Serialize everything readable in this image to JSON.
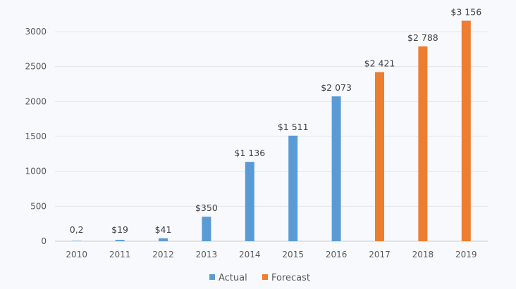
{
  "chart_data": {
    "type": "bar",
    "title": "",
    "xlabel": "",
    "ylabel": "",
    "categories": [
      "2010",
      "2011",
      "2012",
      "2013",
      "2014",
      "2015",
      "2016",
      "2017",
      "2018",
      "2019"
    ],
    "values": [
      0.2,
      19,
      41,
      350,
      1136,
      1511,
      2073,
      2421,
      2788,
      3156
    ],
    "value_labels": [
      "0,2",
      "$19",
      "$41",
      "$350",
      "$1 136",
      "$1 511",
      "$2 073",
      "$2 421",
      "$2 788",
      "$3 156"
    ],
    "series_of_point": [
      "Actual",
      "Actual",
      "Actual",
      "Actual",
      "Actual",
      "Actual",
      "Actual",
      "Forecast",
      "Forecast",
      "Forecast"
    ],
    "series": [
      {
        "name": "Actual",
        "color": "#5b9bd5"
      },
      {
        "name": "Forecast",
        "color": "#ed7d31"
      }
    ],
    "ylim": [
      0,
      3000
    ],
    "yticks": [
      0,
      500,
      1000,
      1500,
      2000,
      2500,
      3000
    ],
    "grid": true,
    "legend_position": "bottom-center"
  }
}
